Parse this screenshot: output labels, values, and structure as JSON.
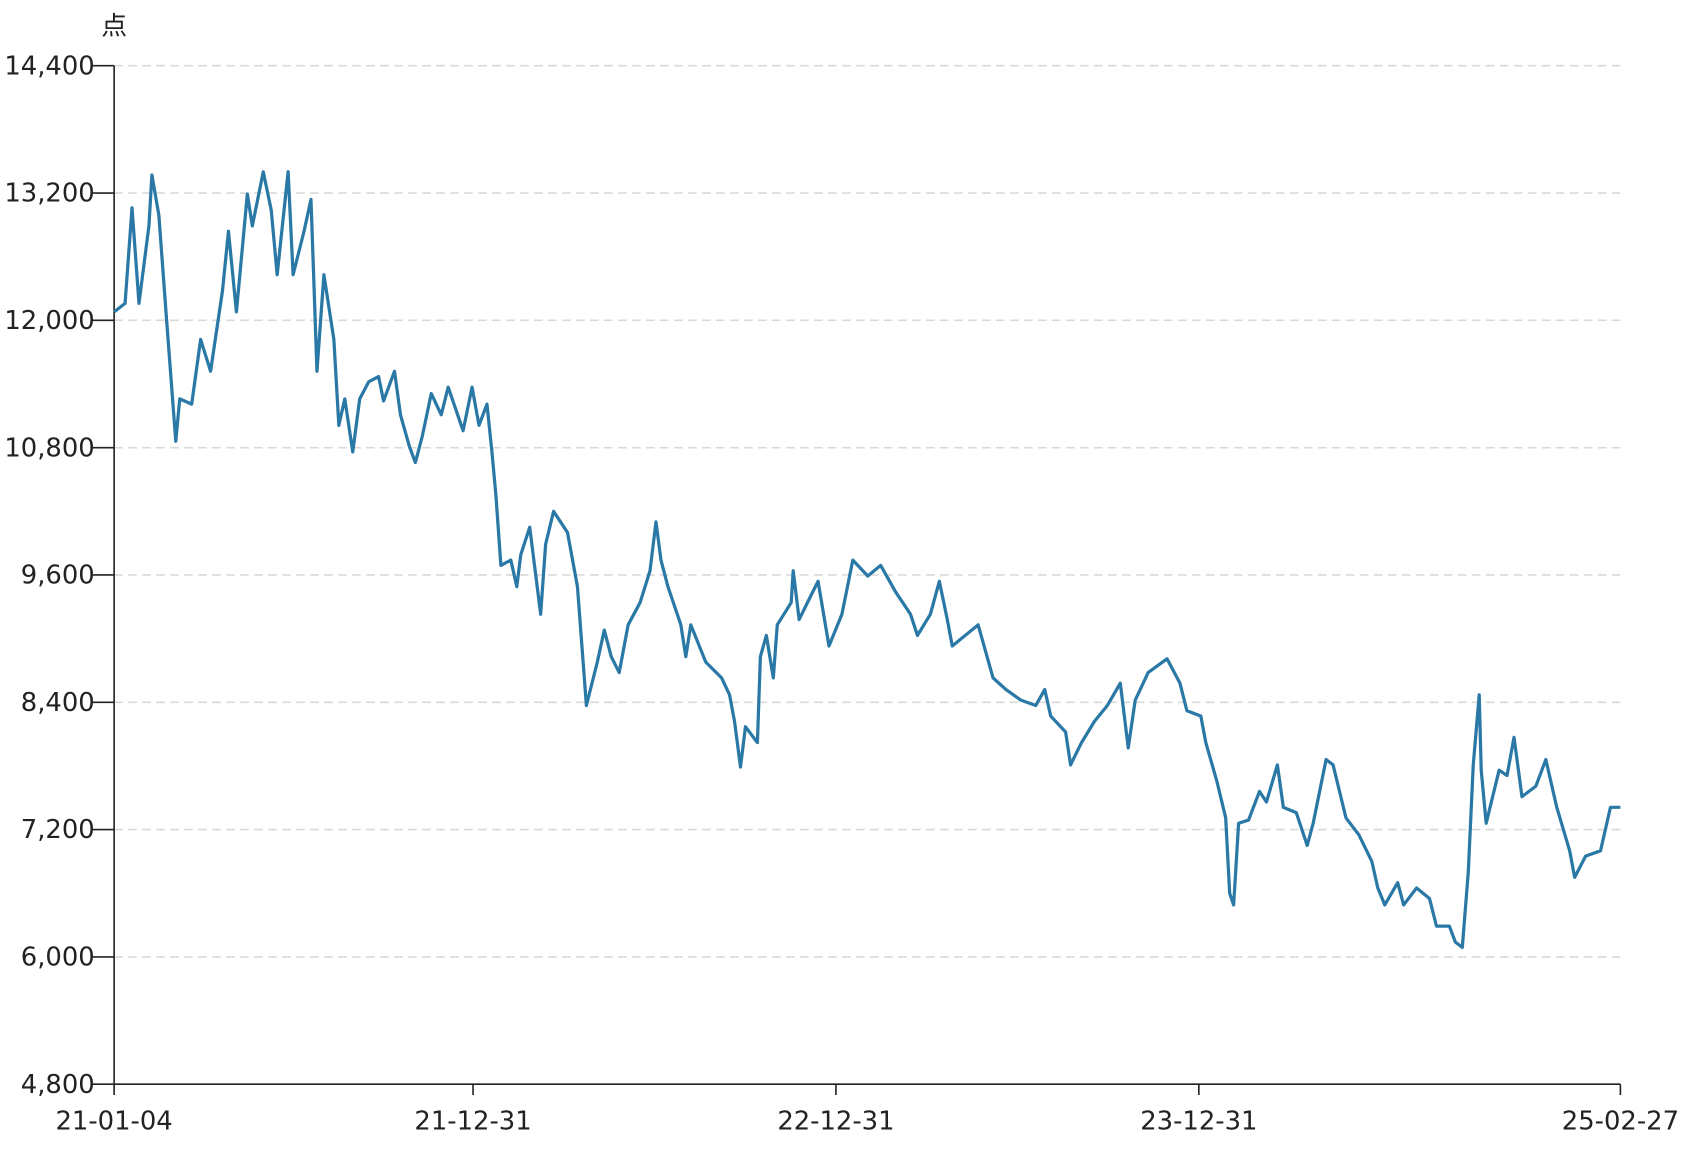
{
  "chart_data": {
    "type": "line",
    "ylabel": "点",
    "x": [
      "21-01-04",
      "21-01-15",
      "21-01-22",
      "21-01-29",
      "21-02-08",
      "21-02-11",
      "21-02-18",
      "21-02-25",
      "21-03-07",
      "21-03-11",
      "21-03-23",
      "21-04-01",
      "21-04-11",
      "21-04-23",
      "21-04-29",
      "21-05-07",
      "21-05-18",
      "21-05-23",
      "21-06-03",
      "21-06-11",
      "21-06-17",
      "21-06-28",
      "21-07-03",
      "21-07-14",
      "21-07-21",
      "21-07-27",
      "21-08-03",
      "21-08-13",
      "21-08-18",
      "21-08-24",
      "21-09-01",
      "21-09-08",
      "21-09-17",
      "21-09-27",
      "21-10-02",
      "21-10-13",
      "21-10-19",
      "21-10-28",
      "21-11-03",
      "21-11-10",
      "21-11-19",
      "21-11-29",
      "21-12-06",
      "21-12-21",
      "21-12-30",
      "22-01-06",
      "22-01-14",
      "22-01-19",
      "22-01-23",
      "22-01-28",
      "22-02-07",
      "22-02-13",
      "22-02-17",
      "22-02-26",
      "22-03-09",
      "22-03-14",
      "22-03-22",
      "22-04-05",
      "22-04-15",
      "22-04-24",
      "22-05-05",
      "22-05-12",
      "22-05-19",
      "22-05-27",
      "22-06-05",
      "22-06-17",
      "22-06-27",
      "22-07-03",
      "22-07-08",
      "22-07-15",
      "22-07-28",
      "22-08-02",
      "22-08-07",
      "22-08-22",
      "22-09-07",
      "22-09-15",
      "22-09-20",
      "22-09-26",
      "22-10-01",
      "22-10-13",
      "22-10-16",
      "22-10-22",
      "22-10-29",
      "22-11-02",
      "22-11-16",
      "22-11-18",
      "22-11-24",
      "22-12-05",
      "22-12-13",
      "22-12-24",
      "23-01-06",
      "23-01-17",
      "23-02-01",
      "23-02-14",
      "23-03-01",
      "23-03-16",
      "23-03-23",
      "23-04-05",
      "23-04-14",
      "23-04-22",
      "23-04-27",
      "23-05-10",
      "23-05-23",
      "23-06-07",
      "23-06-20",
      "23-07-05",
      "23-07-20",
      "23-07-29",
      "23-08-04",
      "23-08-19",
      "23-08-24",
      "23-09-04",
      "23-09-17",
      "23-09-30",
      "23-10-13",
      "23-10-21",
      "23-10-28",
      "23-11-10",
      "23-11-29",
      "23-12-12",
      "23-12-19",
      "24-01-02",
      "24-01-07",
      "24-01-18",
      "24-01-27",
      "24-01-31",
      "24-02-04",
      "24-02-09",
      "24-02-19",
      "24-03-01",
      "24-03-08",
      "24-03-19",
      "24-03-25",
      "24-04-07",
      "24-04-18",
      "24-04-24",
      "24-05-07",
      "24-05-14",
      "24-05-27",
      "24-06-09",
      "24-06-22",
      "24-06-28",
      "24-07-05",
      "24-07-18",
      "24-07-24",
      "24-08-06",
      "24-08-19",
      "24-08-26",
      "24-09-08",
      "24-09-14",
      "24-09-21",
      "24-09-27",
      "24-10-02",
      "24-10-08",
      "24-10-10",
      "24-10-15",
      "24-10-28",
      "24-11-05",
      "24-11-12",
      "24-11-20",
      "24-12-04",
      "24-12-14",
      "24-12-25",
      "25-01-07",
      "25-01-12",
      "25-01-23",
      "25-02-07",
      "25-02-17",
      "25-02-27"
    ],
    "series": [
      {
        "name": "点",
        "color": "#2a78a6",
        "values": [
          12080,
          12160,
          13060,
          12160,
          12890,
          13370,
          12990,
          12100,
          10860,
          11260,
          11210,
          11820,
          11520,
          12280,
          12840,
          12080,
          13190,
          12890,
          13400,
          13040,
          12430,
          13400,
          12430,
          12840,
          13140,
          11520,
          12430,
          11820,
          11010,
          11260,
          10760,
          11260,
          11420,
          11470,
          11240,
          11520,
          11110,
          10810,
          10660,
          10910,
          11310,
          11110,
          11370,
          10960,
          11370,
          11010,
          11210,
          10760,
          10350,
          9690,
          9740,
          9490,
          9790,
          10050,
          9230,
          9890,
          10200,
          10000,
          9490,
          8370,
          8780,
          9080,
          8830,
          8680,
          9130,
          9340,
          9640,
          10100,
          9740,
          9490,
          9130,
          8830,
          9130,
          8780,
          8630,
          8470,
          8220,
          7790,
          8170,
          8020,
          8830,
          9030,
          8630,
          9130,
          9340,
          9640,
          9180,
          9390,
          9540,
          8930,
          9230,
          9740,
          9590,
          9690,
          9440,
          9230,
          9030,
          9230,
          9540,
          9180,
          8930,
          9030,
          9130,
          8630,
          8520,
          8420,
          8370,
          8520,
          8270,
          8120,
          7810,
          8020,
          8220,
          8370,
          8580,
          7970,
          8420,
          8680,
          8810,
          8580,
          8320,
          8270,
          8020,
          7660,
          7310,
          6600,
          6490,
          7260,
          7290,
          7560,
          7460,
          7810,
          7410,
          7360,
          7050,
          7260,
          7860,
          7810,
          7310,
          7150,
          6900,
          6650,
          6490,
          6700,
          6490,
          6650,
          6550,
          6290,
          6290,
          6140,
          6090,
          6800,
          7810,
          8470,
          7760,
          7260,
          7760,
          7710,
          8070,
          7510,
          7610,
          7860,
          7410,
          7000,
          6750,
          6950,
          7000,
          7410,
          7410
        ]
      }
    ],
    "xlim": [
      "21-01-04",
      "25-02-27"
    ],
    "xticks": [
      "21-01-04",
      "21-12-31",
      "22-12-31",
      "23-12-31",
      "25-02-27"
    ],
    "ylim": [
      4800,
      14400
    ],
    "yticks": [
      {
        "value": 4800,
        "label": "4,800"
      },
      {
        "value": 6000,
        "label": "6,000"
      },
      {
        "value": 7200,
        "label": "7,200"
      },
      {
        "value": 8400,
        "label": "8,400"
      },
      {
        "value": 9600,
        "label": "9,600"
      },
      {
        "value": 10800,
        "label": "10,800"
      },
      {
        "value": 12000,
        "label": "12,000"
      },
      {
        "value": 13200,
        "label": "13,200"
      },
      {
        "value": 14400,
        "label": "14,400"
      }
    ],
    "grid": true
  }
}
